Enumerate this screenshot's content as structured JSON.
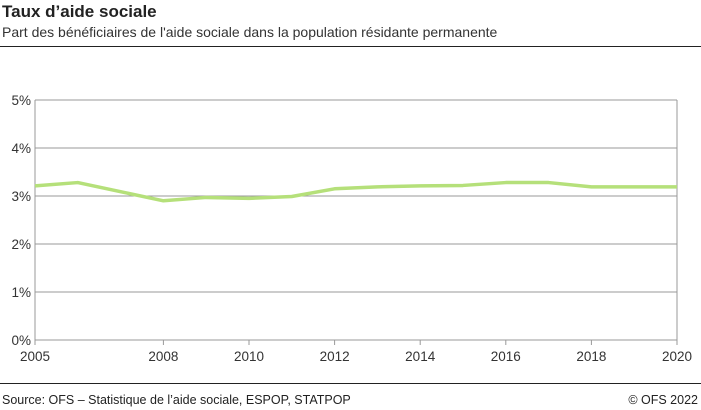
{
  "title": "Taux d’aide sociale",
  "subtitle": "Part des bénéficiaires de l'aide sociale dans la population résidante permanente",
  "source": "Source: OFS – Statistique de l’aide sociale, ESPOP, STATPOP",
  "copyright": "© OFS 2022",
  "chart_data": {
    "type": "line",
    "title": "Taux d’aide sociale",
    "x": [
      2005,
      2006,
      2007,
      2008,
      2009,
      2010,
      2011,
      2012,
      2013,
      2014,
      2015,
      2016,
      2017,
      2018,
      2019,
      2020
    ],
    "series": [
      {
        "values": [
          3.21,
          3.28,
          3.09,
          2.9,
          2.97,
          2.95,
          2.99,
          3.15,
          3.19,
          3.21,
          3.22,
          3.28,
          3.28,
          3.19,
          3.19,
          3.19
        ],
        "color": "#b5e07a"
      }
    ],
    "xticks": [
      "2005",
      "2008",
      "2010",
      "2012",
      "2014",
      "2016",
      "2018",
      "2020"
    ],
    "yticks": [
      "0%",
      "1%",
      "2%",
      "3%",
      "4%",
      "5%"
    ],
    "xlim": [
      2005,
      2020
    ],
    "ylim": [
      0,
      5
    ],
    "grid": true
  }
}
